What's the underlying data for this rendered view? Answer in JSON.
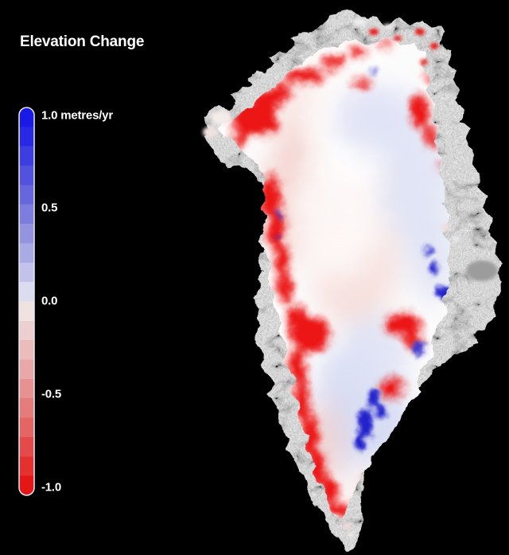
{
  "title": "Elevation Change",
  "colorbar": {
    "ticks": [
      "1.0 metres/yr",
      "0.5",
      "0.0",
      "-0.5",
      "-1.0"
    ],
    "stops": [
      "#1a1ae8",
      "#2929e5",
      "#3d3de2",
      "#5252df",
      "#6767dd",
      "#7d7ddd",
      "#9393e0",
      "#aaaae5",
      "#c2c2ea",
      "#dcdcf1",
      "#f1e2e2",
      "#eecfcf",
      "#ebbcbc",
      "#e8a8a8",
      "#e69292",
      "#e57c7c",
      "#e56464",
      "#e54a4a",
      "#e53030",
      "#e51616"
    ]
  },
  "palette": {
    "bg": "#000000",
    "text": "#ffffff",
    "rock": "#7e7e7e",
    "rock-light": "#9c9c9c",
    "ice": "#fcfbfb",
    "loss-red": "#ec1515",
    "gain-blue": "#2424cc",
    "pale-pink": "#f6dcd8",
    "pale-pink-2": "#f3cfca",
    "pale-blue": "#dfe3f5",
    "pale-blue-2": "#d6daf2",
    "cbar-outline": "#e9e9f2"
  },
  "chart_data": {
    "type": "map",
    "title": "Elevation Change",
    "legend": {
      "orientation": "vertical",
      "position": "top-left",
      "units": "metres/yr",
      "max": 1.0,
      "min": -1.0,
      "tick_values": [
        1.0,
        0.5,
        0.0,
        -0.5,
        -1.0
      ],
      "tick_labels": [
        "1.0 metres/yr",
        "0.5",
        "0.0",
        "-0.5",
        "-1.0"
      ],
      "palette_description": "diverging blue (gain) to white (0) to red (loss), 20 discrete steps"
    }
  }
}
